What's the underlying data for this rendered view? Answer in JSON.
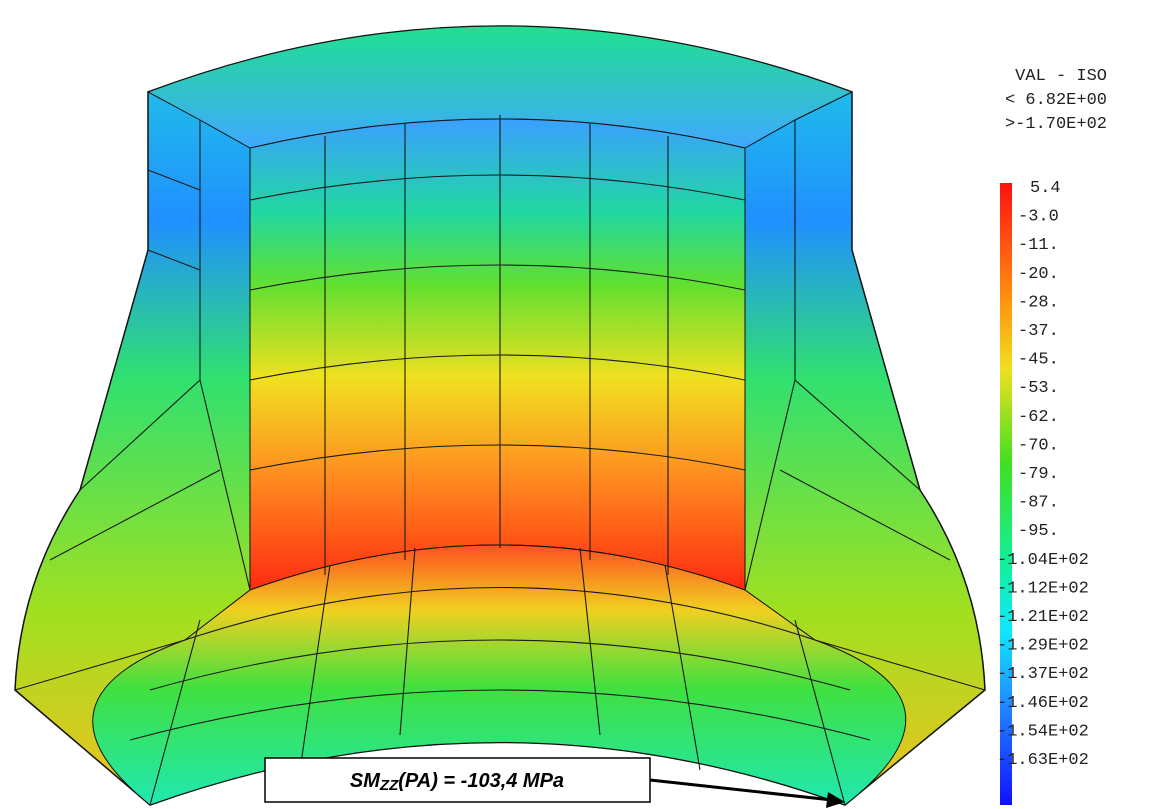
{
  "legend": {
    "title": "VAL - ISO",
    "max": "< 6.82E+00",
    "min": ">-1.70E+02",
    "labels": [
      "5.4",
      "-3.0",
      "-11.",
      "-20.",
      "-28.",
      "-37.",
      "-45.",
      "-53.",
      "-62.",
      "-70.",
      "-79.",
      "-87.",
      "-95.",
      "-1.04E+02",
      "-1.12E+02",
      "-1.21E+02",
      "-1.29E+02",
      "-1.37E+02",
      "-1.46E+02",
      "-1.54E+02",
      "-1.63E+02"
    ]
  },
  "annotation": {
    "prefix": "SM",
    "subscript": "ZZ",
    "suffix": "(PA) = -103,4 MPa"
  }
}
